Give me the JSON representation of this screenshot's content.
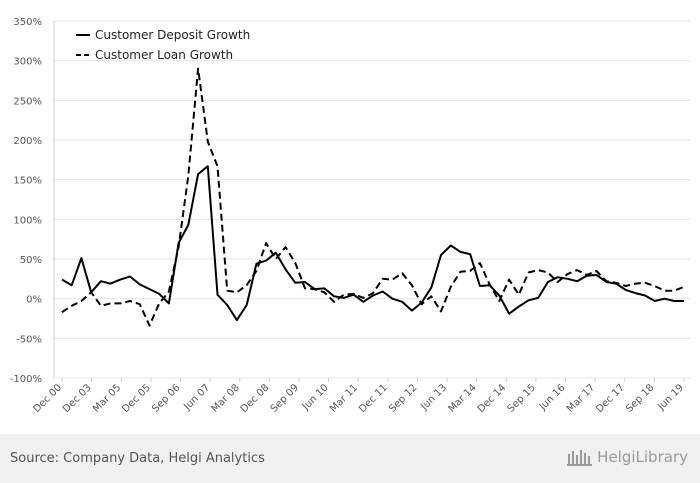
{
  "chart_data": {
    "type": "line",
    "title": "",
    "xlabel": "",
    "ylabel": "",
    "ylim": [
      -100,
      350
    ],
    "yticks": [
      -100,
      -50,
      0,
      50,
      100,
      150,
      200,
      250,
      300,
      350
    ],
    "ytick_labels": [
      "-100%",
      "-50%",
      "0%",
      "50%",
      "100%",
      "150%",
      "200%",
      "250%",
      "300%",
      "350%"
    ],
    "xtick_labels": [
      "Dec 00",
      "Dec 03",
      "Mar 05",
      "Dec 05",
      "Sep 06",
      "Jun 07",
      "Mar 08",
      "Dec 08",
      "Sep 09",
      "Jun 10",
      "Mar 11",
      "Dec 11",
      "Sep 12",
      "Jun 13",
      "Mar 14",
      "Dec 14",
      "Sep 15",
      "Jun 16",
      "Mar 17",
      "Dec 17",
      "Sep 18",
      "Jun 19"
    ],
    "grid": true,
    "legend_position": "top-left",
    "series": [
      {
        "name": "Customer Deposit Growth",
        "style": "solid",
        "color": "#000000",
        "values": [
          24,
          17,
          51,
          8,
          22,
          19,
          24,
          28,
          18,
          12,
          6,
          -6,
          70,
          93,
          157,
          167,
          5,
          -8,
          -27,
          -8,
          44,
          48,
          58,
          37,
          20,
          21,
          12,
          13,
          3,
          1,
          5,
          -4,
          4,
          9,
          0,
          -4,
          -15,
          -5,
          14,
          55,
          67,
          59,
          56,
          16,
          17,
          4,
          -19,
          -10,
          -2,
          1,
          21,
          27,
          25,
          22,
          29,
          30,
          21,
          19,
          11,
          7,
          4,
          -3,
          0,
          -3,
          -3
        ]
      },
      {
        "name": "Customer Loan Growth",
        "style": "dashed",
        "color": "#000000",
        "values": [
          -17,
          -9,
          -3,
          8,
          -9,
          -6,
          -6,
          -3,
          -7,
          -34,
          -6,
          9,
          65,
          155,
          290,
          198,
          167,
          10,
          8,
          17,
          35,
          70,
          50,
          65,
          45,
          13,
          12,
          8,
          -4,
          5,
          6,
          1,
          7,
          25,
          24,
          32,
          17,
          -7,
          3,
          -16,
          15,
          34,
          35,
          45,
          18,
          -3,
          24,
          5,
          33,
          36,
          33,
          21,
          31,
          36,
          30,
          35,
          22,
          20,
          16,
          19,
          20,
          16,
          10,
          10,
          15
        ]
      }
    ]
  },
  "footer": {
    "source": "Source: Company Data, Helgi Analytics",
    "logo_text": "HelgiLibrary"
  }
}
